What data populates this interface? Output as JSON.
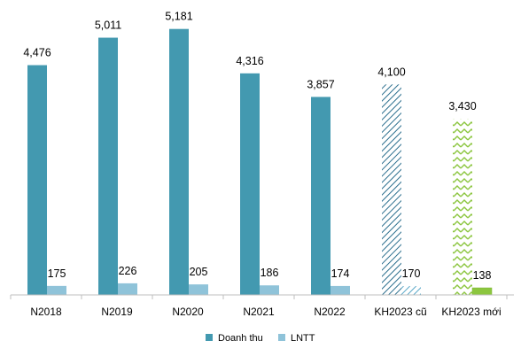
{
  "chart_data": {
    "type": "bar",
    "categories": [
      "N2018",
      "N2019",
      "N2020",
      "N2021",
      "N2022",
      "KH2023 cũ",
      "KH2023 mới"
    ],
    "series": [
      {
        "name": "Doanh thu",
        "values": [
          4476,
          5011,
          5181,
          4316,
          3857,
          4100,
          3430
        ],
        "labels": [
          "4,476",
          "5,011",
          "5,181",
          "4,316",
          "3,857",
          "4,100",
          "3,430"
        ],
        "color": "#4399b0"
      },
      {
        "name": "LNTT",
        "values": [
          175,
          226,
          205,
          186,
          174,
          170,
          138
        ],
        "labels": [
          "175",
          "226",
          "205",
          "186",
          "174",
          "170",
          "138"
        ],
        "color": "#8fc3d9"
      }
    ],
    "plan_styles": {
      "KH2023 cũ": {
        "pattern": "diagonal-hatch",
        "color": "#2c6f8e"
      },
      "KH2023 mới": {
        "pattern": "zigzag",
        "color": "#8cc63f"
      }
    },
    "ylim": [
      0,
      5400
    ],
    "grid": false,
    "legend": "bottom"
  }
}
